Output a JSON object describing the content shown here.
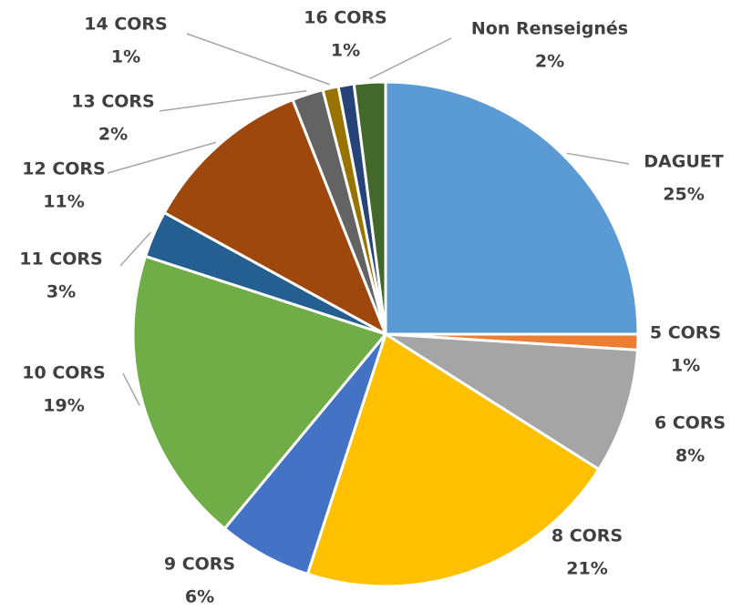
{
  "chart_data": {
    "type": "pie",
    "categories": [
      "DAGUET",
      "5 CORS",
      "6 CORS",
      "8 CORS",
      "9 CORS",
      "10 CORS",
      "11 CORS",
      "12 CORS",
      "13 CORS",
      "14 CORS",
      "16 CORS",
      "Non Renseignés"
    ],
    "values": [
      25,
      1,
      8,
      21,
      6,
      19,
      3,
      11,
      2,
      1,
      1,
      2
    ],
    "value_labels": [
      "25%",
      "1%",
      "8%",
      "21%",
      "6%",
      "19%",
      "3%",
      "11%",
      "2%",
      "1%",
      "1%",
      "2%"
    ],
    "colors": [
      "#5b9bd5",
      "#ed7d31",
      "#a5a5a5",
      "#ffc000",
      "#4472c4",
      "#70ad47",
      "#255e91",
      "#9e480e",
      "#636363",
      "#997300",
      "#264478",
      "#43682b"
    ]
  }
}
